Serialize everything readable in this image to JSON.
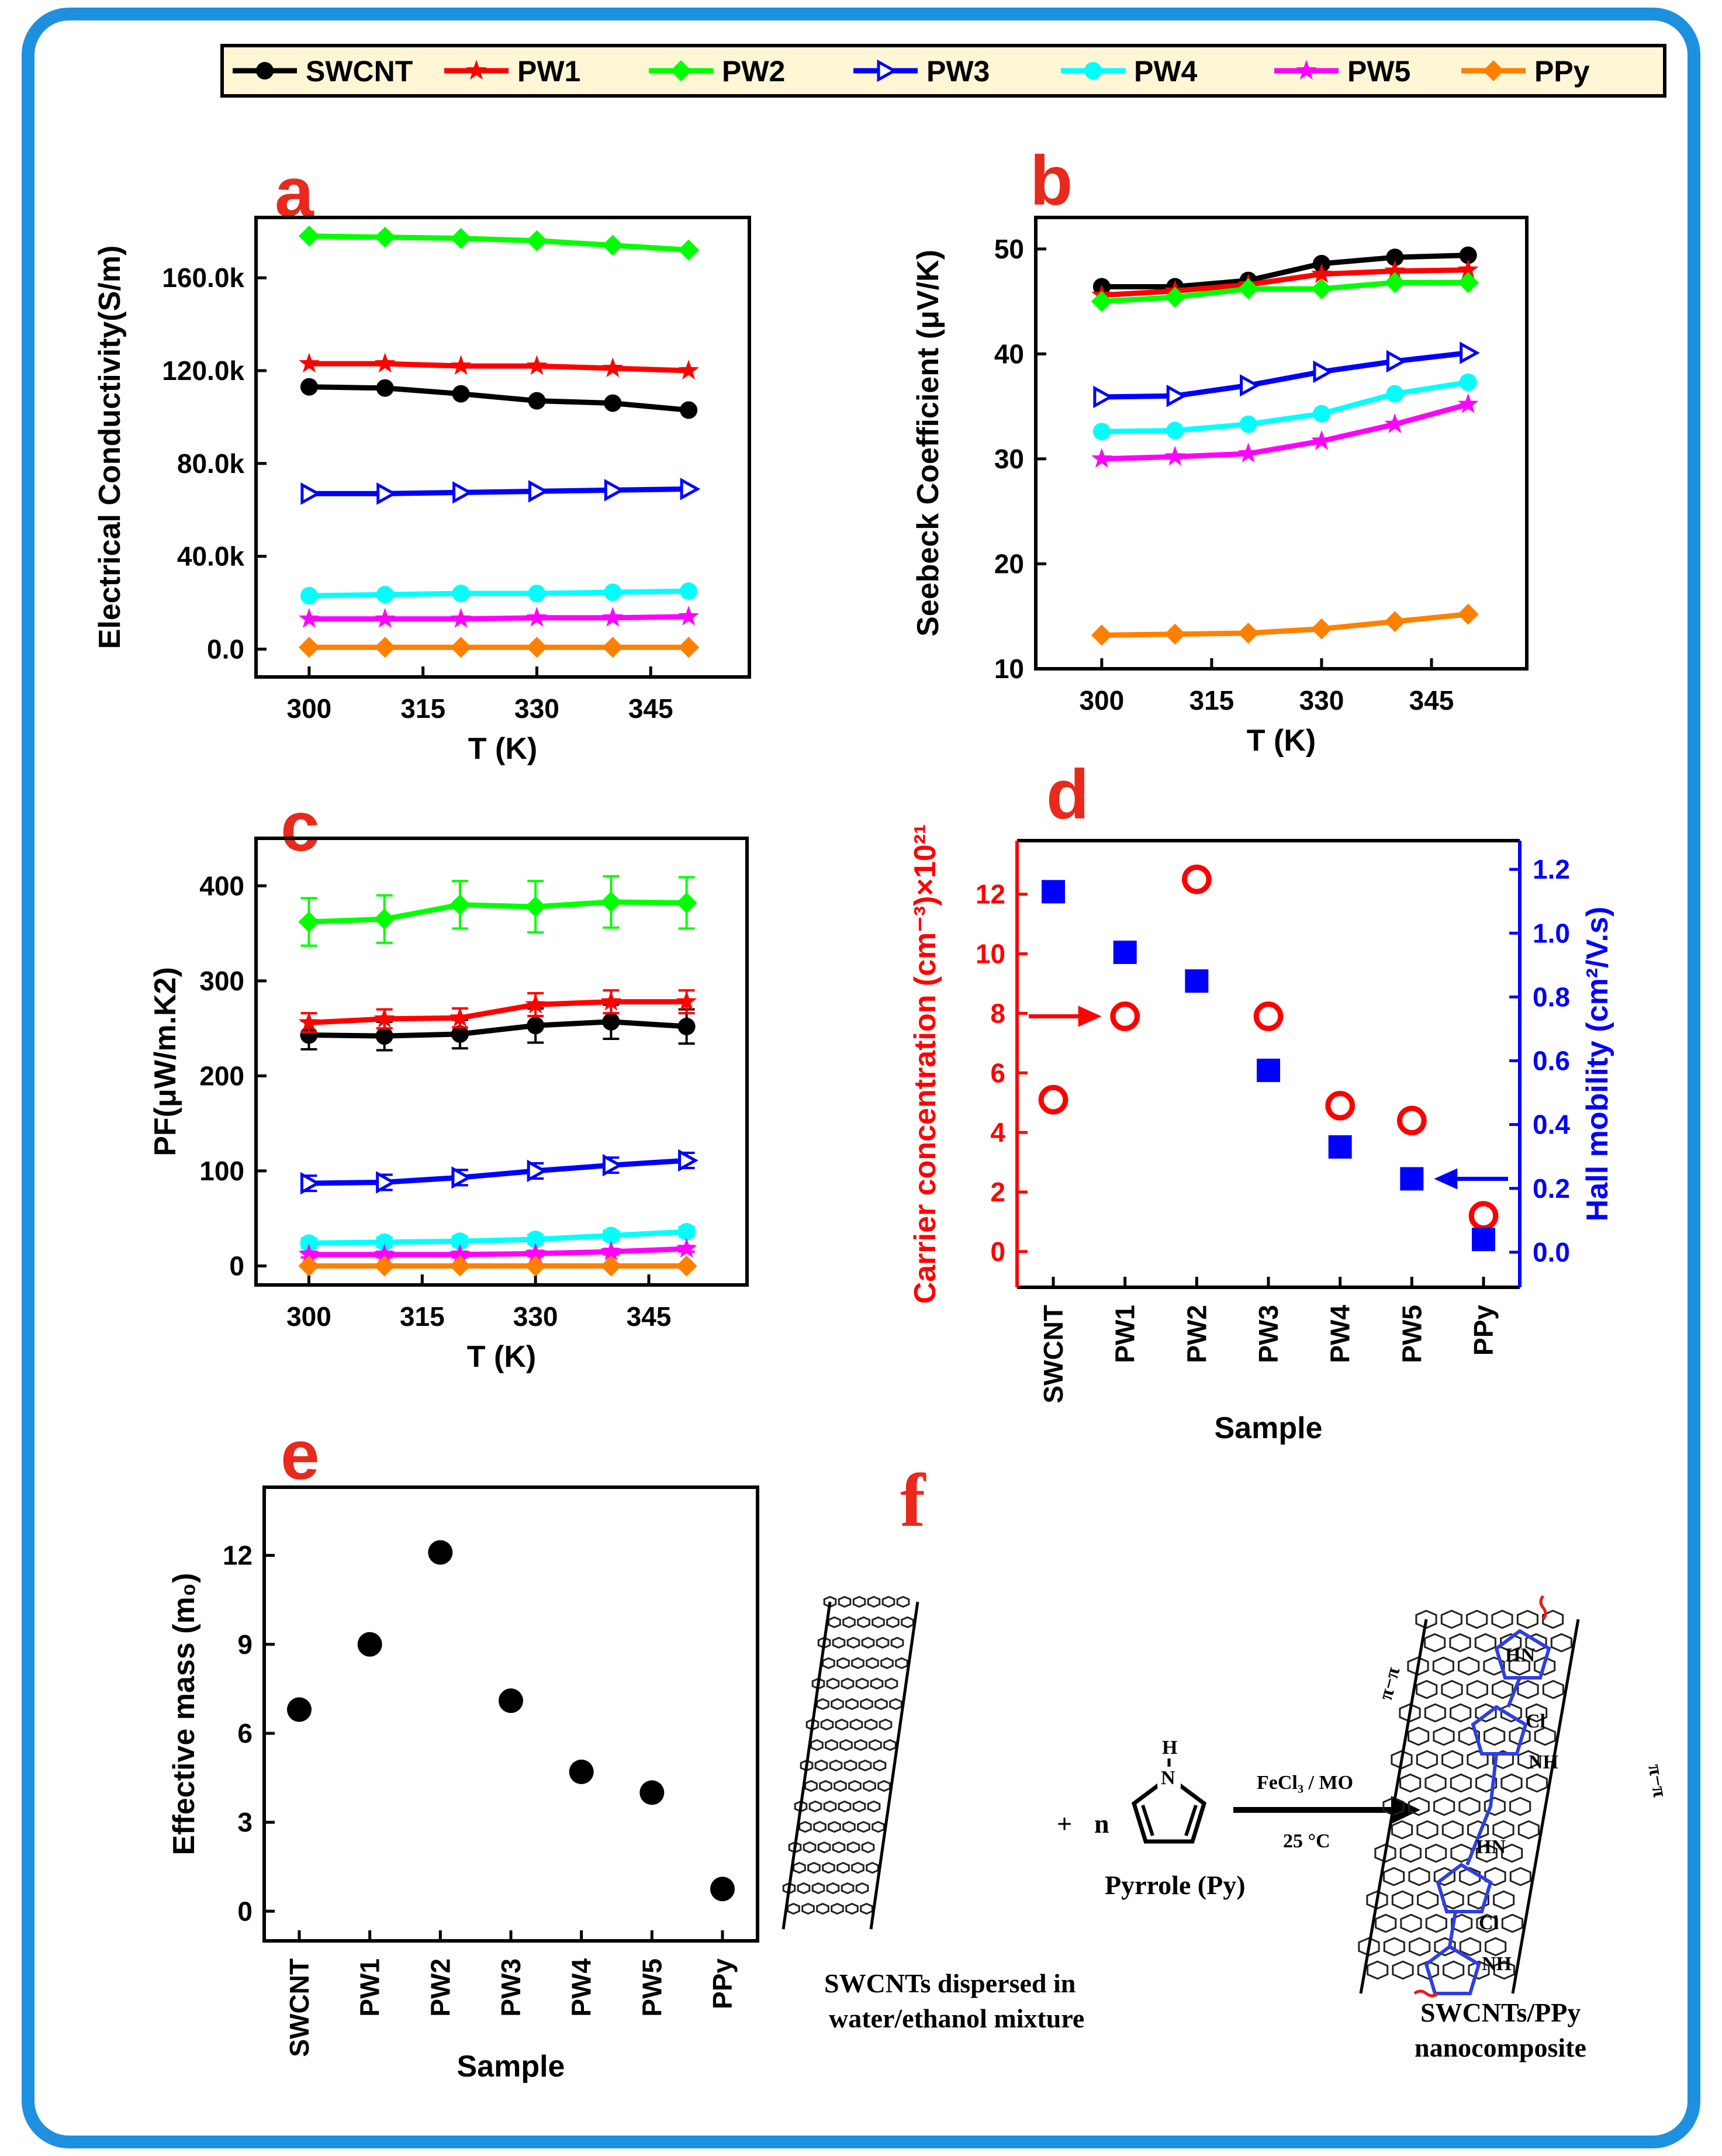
{
  "colors": {
    "SWCNT": "#000000",
    "PW1": "#ff0000",
    "PW2": "#00ff00",
    "PW3": "#0000ff",
    "PW4": "#00ffff",
    "PW5": "#ff00ff",
    "PPy": "#ff8000",
    "letter": "#e8291c",
    "frame": "#1e90e0",
    "legend_bg": "#fff6d5"
  },
  "legend": {
    "entries": [
      {
        "name": "SWCNT",
        "marker": "circle"
      },
      {
        "name": "PW1",
        "marker": "star"
      },
      {
        "name": "PW2",
        "marker": "diamond"
      },
      {
        "name": "PW3",
        "marker": "triangle-right"
      },
      {
        "name": "PW4",
        "marker": "circle"
      },
      {
        "name": "PW5",
        "marker": "star"
      },
      {
        "name": "PPy",
        "marker": "diamond"
      }
    ]
  },
  "chart_data": [
    {
      "panel": "a",
      "type": "line",
      "title": "",
      "xlabel": "T (K)",
      "ylabel": "Electrical Conductivity(S/m)",
      "x": [
        300,
        310,
        320,
        330,
        340,
        350
      ],
      "xlim": [
        293,
        358
      ],
      "xticks": [
        "300",
        "315",
        "330",
        "345"
      ],
      "ylim": [
        -12000,
        186000
      ],
      "yticks": [
        "0.0",
        "40.0k",
        "80.0k",
        "120.0k",
        "160.0k"
      ],
      "series": [
        {
          "name": "SWCNT",
          "values": [
            113000,
            112500,
            110000,
            107000,
            106000,
            103000
          ]
        },
        {
          "name": "PW1",
          "values": [
            123000,
            123000,
            122000,
            122000,
            121000,
            120000
          ]
        },
        {
          "name": "PW2",
          "values": [
            178000,
            177500,
            177000,
            176000,
            174000,
            172000
          ]
        },
        {
          "name": "PW3",
          "values": [
            67000,
            67000,
            67500,
            68000,
            68500,
            69000
          ]
        },
        {
          "name": "PW4",
          "values": [
            23000,
            23500,
            24000,
            24000,
            24500,
            25000
          ]
        },
        {
          "name": "PW5",
          "values": [
            13000,
            13000,
            13000,
            13500,
            13500,
            14000
          ]
        },
        {
          "name": "PPy",
          "values": [
            800,
            800,
            800,
            800,
            800,
            800
          ]
        }
      ]
    },
    {
      "panel": "b",
      "type": "line",
      "title": "",
      "xlabel": "T (K)",
      "ylabel": "Seebeck Coefficient (μV/K)",
      "x": [
        300,
        310,
        320,
        330,
        340,
        350
      ],
      "xlim": [
        291,
        358
      ],
      "xticks": [
        "300",
        "315",
        "330",
        "345"
      ],
      "ylim": [
        10,
        53
      ],
      "yticks": [
        "10",
        "20",
        "30",
        "40",
        "50"
      ],
      "series": [
        {
          "name": "SWCNT",
          "values": [
            46.4,
            46.4,
            47.0,
            48.6,
            49.2,
            49.4
          ]
        },
        {
          "name": "PW1",
          "values": [
            45.6,
            46.0,
            46.6,
            47.6,
            47.9,
            48.0
          ]
        },
        {
          "name": "PW2",
          "values": [
            45.0,
            45.4,
            46.2,
            46.2,
            46.8,
            46.8
          ]
        },
        {
          "name": "PW3",
          "values": [
            35.9,
            36.0,
            37.0,
            38.3,
            39.3,
            40.1
          ]
        },
        {
          "name": "PW4",
          "values": [
            32.6,
            32.7,
            33.3,
            34.3,
            36.2,
            37.3
          ]
        },
        {
          "name": "PW5",
          "values": [
            30.0,
            30.2,
            30.5,
            31.7,
            33.3,
            35.2
          ]
        },
        {
          "name": "PPy",
          "values": [
            13.2,
            13.3,
            13.4,
            13.8,
            14.5,
            15.2
          ]
        }
      ]
    },
    {
      "panel": "c",
      "type": "line",
      "title": "",
      "xlabel": "T (K)",
      "ylabel": "PF(μW/m.K2)",
      "x": [
        300,
        310,
        320,
        330,
        340,
        350
      ],
      "xlim": [
        293,
        358
      ],
      "xticks": [
        "300",
        "315",
        "330",
        "345"
      ],
      "ylim": [
        -20,
        450
      ],
      "yticks": [
        "0",
        "100",
        "200",
        "300",
        "400"
      ],
      "series": [
        {
          "name": "SWCNT",
          "values": [
            243,
            242,
            244,
            253,
            257,
            252
          ],
          "errors": [
            15,
            15,
            15,
            18,
            18,
            18
          ]
        },
        {
          "name": "PW1",
          "values": [
            256,
            260,
            261,
            275,
            278,
            278
          ],
          "errors": [
            10,
            10,
            10,
            12,
            12,
            12
          ]
        },
        {
          "name": "PW2",
          "values": [
            362,
            365,
            380,
            378,
            383,
            382
          ],
          "errors": [
            25,
            25,
            25,
            27,
            27,
            27
          ]
        },
        {
          "name": "PW3",
          "values": [
            87,
            88,
            93,
            100,
            106,
            111
          ],
          "errors": [
            8,
            8,
            8,
            8,
            8,
            8
          ]
        },
        {
          "name": "PW4",
          "values": [
            24,
            25,
            26,
            28,
            32,
            36
          ],
          "errors": [
            5,
            5,
            5,
            5,
            5,
            5
          ]
        },
        {
          "name": "PW5",
          "values": [
            12,
            12,
            12,
            13,
            15,
            18
          ],
          "errors": [
            3,
            3,
            3,
            3,
            3,
            3
          ]
        },
        {
          "name": "PPy",
          "values": [
            0,
            0,
            0,
            0,
            0,
            0
          ],
          "errors": [
            0,
            0,
            0,
            0,
            0,
            0
          ]
        }
      ]
    },
    {
      "panel": "d",
      "type": "scatter",
      "title": "",
      "xlabel": "Sample",
      "ylabel": "Carrier concentration (cm⁻³)×10²¹",
      "ylabel2": "Hall mobility (cm²/V.s)",
      "categories": [
        "SWCNT",
        "PW1",
        "PW2",
        "PW3",
        "PW4",
        "PW5",
        "PPy"
      ],
      "ylim": [
        -1.2,
        13.8
      ],
      "yticks": [
        "0",
        "2",
        "4",
        "6",
        "8",
        "10",
        "12"
      ],
      "ylim2": [
        -0.11,
        1.29
      ],
      "yticks2": [
        "0.0",
        "0.2",
        "0.4",
        "0.6",
        "0.8",
        "1.0",
        "1.2"
      ],
      "series": [
        {
          "name": "Carrier concentration",
          "axis": "left",
          "marker": "open-circle",
          "values": [
            5.1,
            7.9,
            12.5,
            7.9,
            4.9,
            4.4,
            1.2
          ]
        },
        {
          "name": "Hall mobility",
          "axis": "right",
          "marker": "square",
          "values": [
            1.13,
            0.94,
            0.85,
            0.57,
            0.33,
            0.23,
            0.04
          ]
        }
      ]
    },
    {
      "panel": "e",
      "type": "scatter",
      "title": "",
      "xlabel": "Sample",
      "ylabel": "Effective mass (m₀)",
      "categories": [
        "SWCNT",
        "PW1",
        "PW2",
        "PW3",
        "PW4",
        "PW5",
        "PPy"
      ],
      "ylim": [
        -1,
        14.3
      ],
      "yticks": [
        "0",
        "3",
        "6",
        "9",
        "12"
      ],
      "series": [
        {
          "name": "Effective mass",
          "values": [
            6.8,
            9.0,
            12.1,
            7.1,
            4.7,
            4.0,
            0.75
          ]
        }
      ]
    }
  ],
  "panels": {
    "a": {
      "letter": "a"
    },
    "b": {
      "letter": "b"
    },
    "c": {
      "letter": "c"
    },
    "d": {
      "letter": "d"
    },
    "e": {
      "letter": "e"
    },
    "f": {
      "letter": "f"
    }
  },
  "scheme": {
    "left_caption_1": "SWCNTs dispersed in",
    "left_caption_2": "water/ethanol mixture",
    "plus": "+",
    "coef": "n",
    "pyrrole_h": "H",
    "pyrrole_n": "N",
    "pyrrole_label": "Pyrrole (Py)",
    "reagent": "FeCl₃ / MO",
    "temperature": "25 °C",
    "right_caption_1": "SWCNTs/PPy",
    "right_caption_2": "nanocomposite",
    "hn": "HN",
    "nh": "NH",
    "cl": "Cl",
    "pi_pi": "π−π"
  }
}
